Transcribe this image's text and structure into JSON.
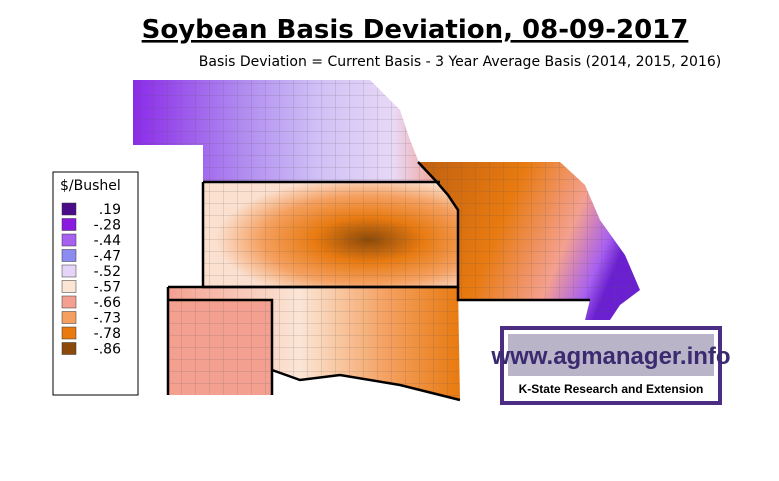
{
  "header": {
    "title": "Soybean Basis Deviation, 08-09-2017",
    "subtitle": "Basis Deviation = Current Basis - 3 Year Average Basis (2014, 2015, 2016)"
  },
  "legend": {
    "title": "$/Bushel",
    "items": [
      {
        "label": ".19",
        "color": "#4b0c8a"
      },
      {
        "label": "-.28",
        "color": "#8a1ae0"
      },
      {
        "label": "-.44",
        "color": "#a860f0"
      },
      {
        "label": "-.47",
        "color": "#8c8cf0"
      },
      {
        "label": "-.52",
        "color": "#e4d4f8"
      },
      {
        "label": "-.57",
        "color": "#fbe6d6"
      },
      {
        "label": "-.66",
        "color": "#f4a090"
      },
      {
        "label": "-.73",
        "color": "#f5a060"
      },
      {
        "label": "-.78",
        "color": "#e87a10"
      },
      {
        "label": "-.86",
        "color": "#8b4a0a"
      }
    ]
  },
  "logo": {
    "url": "www.agmanager.info",
    "org": "K-State Research and Extension"
  }
}
